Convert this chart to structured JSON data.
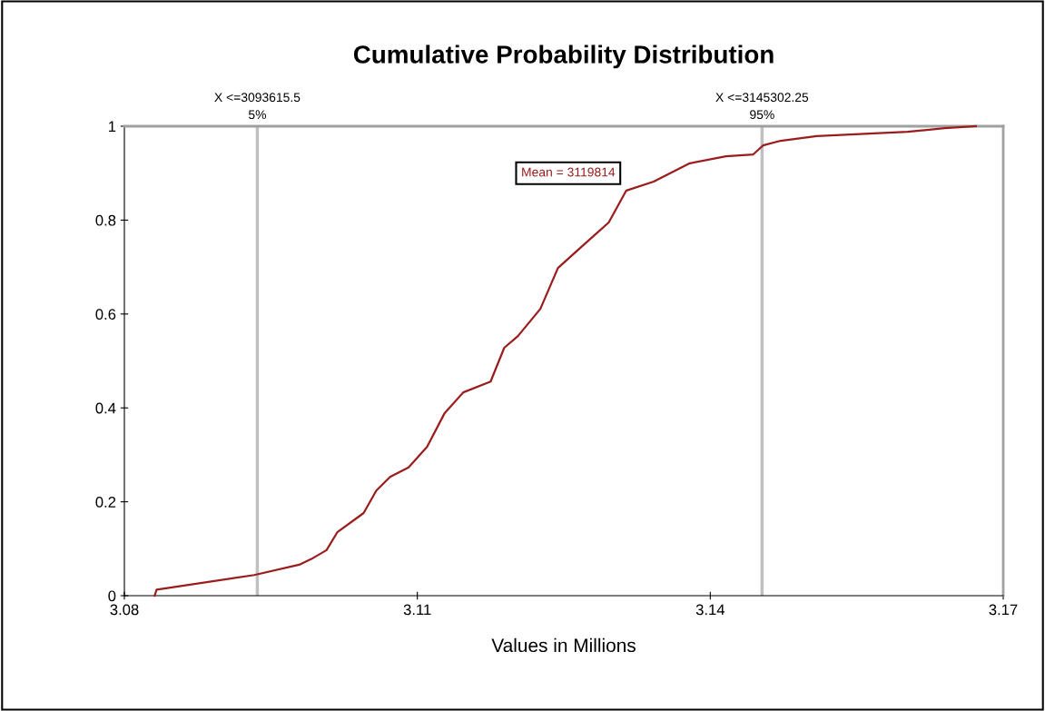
{
  "chart_data": {
    "type": "line",
    "title": "Cumulative Probability Distribution",
    "xlabel": "Values in Millions",
    "series": [
      {
        "color": "#9b1c1c",
        "x": [
          3.0831,
          3.0833,
          3.0933,
          3.0979,
          3.0993,
          3.1007,
          3.1018,
          3.1045,
          3.1058,
          3.1072,
          3.1091,
          3.111,
          3.1128,
          3.1147,
          3.1175,
          3.1189,
          3.1203,
          3.1226,
          3.1244,
          3.1268,
          3.1296,
          3.1314,
          3.1342,
          3.1379,
          3.1416,
          3.1444,
          3.1454,
          3.1472,
          3.1509,
          3.1602,
          3.164,
          3.1672
        ],
        "values": [
          0,
          0.013,
          0.044,
          0.066,
          0.08,
          0.097,
          0.135,
          0.176,
          0.224,
          0.253,
          0.273,
          0.317,
          0.389,
          0.433,
          0.456,
          0.528,
          0.553,
          0.611,
          0.698,
          0.743,
          0.795,
          0.863,
          0.882,
          0.921,
          0.936,
          0.94,
          0.959,
          0.969,
          0.979,
          0.988,
          0.996,
          1.0
        ]
      }
    ],
    "xlim": [
      3.08,
      3.17
    ],
    "xticks": [
      3.08,
      3.11,
      3.14,
      3.17
    ],
    "ylim": [
      0,
      1
    ],
    "yticks": [
      0,
      0.2,
      0.4,
      0.6,
      0.8,
      1
    ],
    "ref_lines": [
      {
        "axis": "x",
        "value": 3.0936155,
        "label": "X <=3093615.5\n5%",
        "color": "#c0c0c0"
      },
      {
        "axis": "x",
        "value": 3.14530225,
        "label": "X <=3145302.25\n95%",
        "color": "#c0c0c0"
      }
    ],
    "annotations": [
      "Mean = 3119814"
    ],
    "grid": false,
    "legend": false,
    "marker": "none",
    "line_style": "solid"
  }
}
